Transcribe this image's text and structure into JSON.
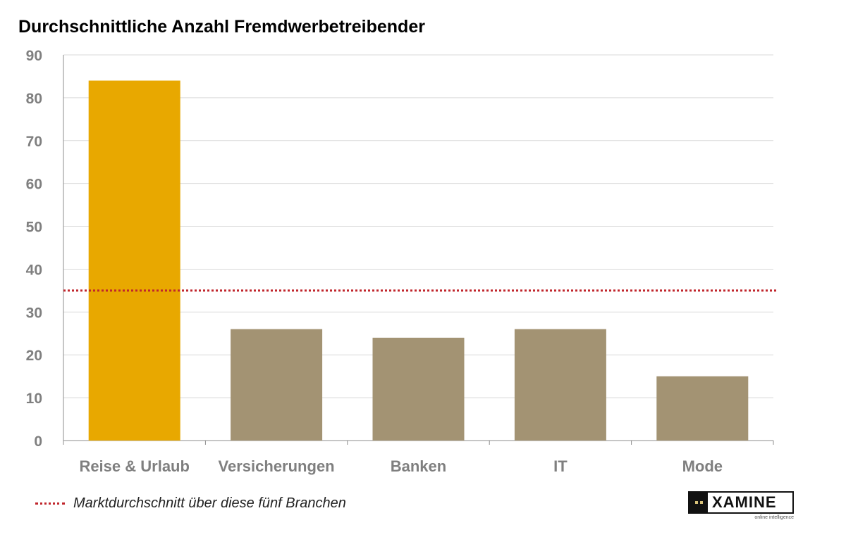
{
  "chart_data": {
    "type": "bar",
    "title": "Durchschnittliche Anzahl  Fremdwerbetreibender",
    "categories": [
      "Reise & Urlaub",
      "Versicherungen",
      "Banken",
      "IT",
      "Mode"
    ],
    "values": [
      84,
      26,
      24,
      26,
      15
    ],
    "bar_colors": [
      "#e8a800",
      "#a39373",
      "#a39373",
      "#a39373",
      "#a39373"
    ],
    "ylim": [
      0,
      90
    ],
    "yticks": [
      0,
      10,
      20,
      30,
      40,
      50,
      60,
      70,
      80,
      90
    ],
    "grid": true,
    "reference_line": {
      "value": 35,
      "label": "Marktdurchschnitt über diese fünf Branchen",
      "color": "#c0262c",
      "style": "dotted"
    },
    "legend_placement": "bottom-left"
  },
  "logo": {
    "text": "XAMINE",
    "tagline": "online intelligence"
  }
}
